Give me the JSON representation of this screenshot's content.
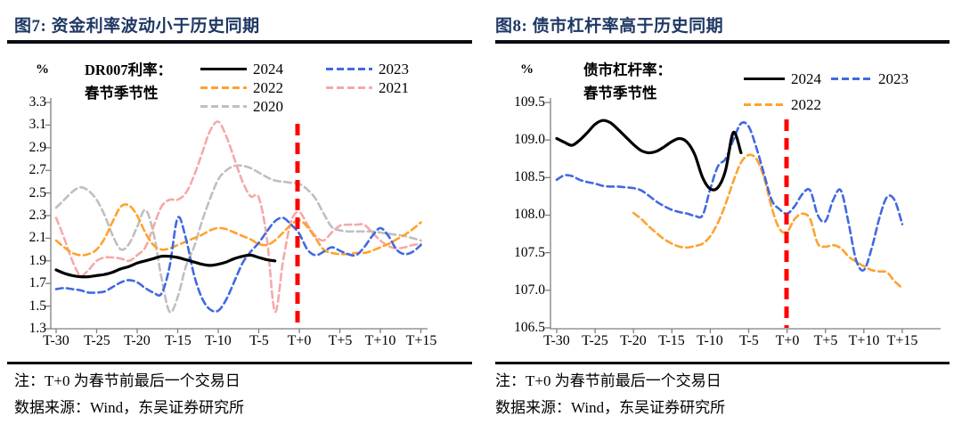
{
  "left_panel": {
    "title": "图7:  资金利率波动小于历史同期",
    "unit_label": "%",
    "label_line1": "DR007利率：",
    "label_line2": "春节季节性",
    "note_line1": "注：T+0 为春节前最后一个交易日",
    "note_line2": "数据来源：Wind，东吴证券研究所"
  },
  "right_panel": {
    "title": "图8:  债市杠杆率高于历史同期",
    "unit_label": "%",
    "label_line1": "债市杠杆率：",
    "label_line2": "春节季节性",
    "note_line1": "注：T+0 为春节前最后一个交易日",
    "note_line2": "数据来源：Wind，东吴证券研究所"
  },
  "colors": {
    "title_navy": "#1f3864",
    "black_2024": "#000000",
    "blue_2023": "#4169e1",
    "orange_2022": "#ffa22e",
    "pink_2021": "#f5a9a9",
    "gray_2020": "#bfbfbf",
    "red_marker": "#ff0000",
    "axis_gray": "#7f7f7f"
  },
  "chart_data": [
    {
      "type": "line",
      "title": "DR007利率: 春节季节性",
      "ylabel": "%",
      "y_tick_labels": [
        "3.3",
        "3.1",
        "2.9",
        "2.7",
        "2.5",
        "2.3",
        "2.1",
        "1.9",
        "1.7",
        "1.5",
        "1.3"
      ],
      "ylim": [
        1.3,
        3.3
      ],
      "x_tick_labels": [
        "T-30",
        "T-25",
        "T-20",
        "T-15",
        "T-10",
        "T-5",
        "T+0",
        "T+5",
        "T+10",
        "T+15"
      ],
      "x_tick_days": [
        -30,
        -25,
        -20,
        -15,
        -10,
        -5,
        0,
        5,
        10,
        15
      ],
      "xlim": [
        -30,
        15
      ],
      "red_dashed_line_at": "T+0",
      "legend_position": "top",
      "grid": false,
      "series": [
        {
          "name": "2024",
          "color": "#000000",
          "dashed": false,
          "width": 3.2,
          "start_day": -30,
          "values": [
            1.82,
            1.79,
            1.77,
            1.76,
            1.76,
            1.77,
            1.78,
            1.8,
            1.83,
            1.85,
            1.88,
            1.9,
            1.92,
            1.94,
            1.94,
            1.93,
            1.91,
            1.89,
            1.87,
            1.86,
            1.87,
            1.89,
            1.92,
            1.94,
            1.95,
            1.93,
            1.91,
            1.9
          ]
        },
        {
          "name": "2023",
          "color": "#4169e1",
          "dashed": true,
          "width": 2.6,
          "start_day": -30,
          "values": [
            1.65,
            1.66,
            1.65,
            1.64,
            1.62,
            1.62,
            1.63,
            1.67,
            1.71,
            1.73,
            1.71,
            1.66,
            1.62,
            1.61,
            1.85,
            2.28,
            2.1,
            1.78,
            1.57,
            1.47,
            1.46,
            1.56,
            1.72,
            1.88,
            1.98,
            2.06,
            2.16,
            2.25,
            2.28,
            2.22,
            2.14,
            2.0,
            1.95,
            1.98,
            2.02,
            1.99,
            1.96,
            1.95,
            2.02,
            2.12,
            2.19,
            2.12,
            2.0,
            1.96,
            1.98,
            2.04
          ]
        },
        {
          "name": "2022",
          "color": "#ffa22e",
          "dashed": true,
          "width": 2.6,
          "start_day": -30,
          "values": [
            2.08,
            2.02,
            1.97,
            1.95,
            1.96,
            2.0,
            2.1,
            2.25,
            2.38,
            2.39,
            2.3,
            2.15,
            2.04,
            2.0,
            2.01,
            2.04,
            2.07,
            2.1,
            2.13,
            2.17,
            2.19,
            2.18,
            2.15,
            2.12,
            2.09,
            2.05,
            2.04,
            2.08,
            2.15,
            2.22,
            2.26,
            2.2,
            2.1,
            2.0,
            1.97,
            1.96,
            1.96,
            1.97,
            1.97,
            1.99,
            2.02,
            2.05,
            2.09,
            2.13,
            2.18,
            2.24
          ]
        },
        {
          "name": "2021",
          "color": "#f5a9a9",
          "dashed": true,
          "width": 2.6,
          "start_day": -30,
          "values": [
            2.28,
            2.1,
            1.9,
            1.77,
            1.82,
            1.9,
            1.93,
            1.93,
            1.92,
            1.9,
            1.95,
            2.02,
            2.2,
            2.38,
            2.44,
            2.44,
            2.5,
            2.65,
            2.85,
            3.05,
            3.13,
            3.0,
            2.8,
            2.6,
            2.47,
            2.46,
            2.1,
            1.45,
            1.9,
            2.25,
            2.33,
            2.22,
            2.12,
            2.08,
            2.15,
            2.21,
            2.22,
            2.22,
            2.22,
            2.15,
            2.08,
            2.03,
            2.01,
            2.02,
            2.04,
            2.05
          ]
        },
        {
          "name": "2020",
          "color": "#bfbfbf",
          "dashed": true,
          "width": 2.6,
          "start_day": -30,
          "values": [
            2.37,
            2.44,
            2.51,
            2.55,
            2.52,
            2.44,
            2.3,
            2.12,
            2.0,
            2.05,
            2.2,
            2.35,
            2.15,
            1.75,
            1.45,
            1.58,
            1.85,
            2.02,
            2.25,
            2.45,
            2.62,
            2.7,
            2.74,
            2.74,
            2.72,
            2.68,
            2.64,
            2.61,
            2.6,
            2.59,
            2.58,
            2.53,
            2.45,
            2.32,
            2.2,
            2.17,
            2.16,
            2.16,
            2.16,
            2.16,
            2.15,
            2.14,
            2.13,
            2.12,
            2.1,
            2.08
          ]
        }
      ]
    },
    {
      "type": "line",
      "title": "债市杠杆率: 春节季节性",
      "ylabel": "%",
      "y_tick_labels": [
        "109.5",
        "109.0",
        "108.5",
        "108.0",
        "107.5",
        "107.0",
        "106.5"
      ],
      "ylim": [
        106.5,
        109.5
      ],
      "x_tick_labels": [
        "T-30",
        "T-25",
        "T-20",
        "T-15",
        "T-10",
        "T-5",
        "T+0",
        "T+5",
        "T+10",
        "T+15"
      ],
      "x_tick_days": [
        -30,
        -25,
        -20,
        -15,
        -10,
        -5,
        0,
        5,
        10,
        15
      ],
      "xlim": [
        -30,
        15
      ],
      "red_dashed_line_at": "T+0",
      "legend_position": "top",
      "grid": false,
      "series": [
        {
          "name": "2024",
          "color": "#000000",
          "dashed": false,
          "width": 3.2,
          "start_day": -30,
          "values": [
            109.02,
            108.97,
            108.93,
            109.0,
            109.1,
            109.21,
            109.26,
            109.23,
            109.14,
            109.04,
            108.94,
            108.86,
            108.83,
            108.85,
            108.91,
            108.98,
            109.02,
            108.97,
            108.8,
            108.5,
            108.35,
            108.37,
            108.6,
            109.1,
            108.83
          ]
        },
        {
          "name": "2023",
          "color": "#4169e1",
          "dashed": true,
          "width": 2.6,
          "start_day": -30,
          "values": [
            108.47,
            108.53,
            108.52,
            108.47,
            108.44,
            108.42,
            108.39,
            108.38,
            108.38,
            108.37,
            108.36,
            108.33,
            108.26,
            108.18,
            108.12,
            108.07,
            108.04,
            108.02,
            107.99,
            108.0,
            108.35,
            108.65,
            108.75,
            109.0,
            109.22,
            109.18,
            108.9,
            108.55,
            108.2,
            108.08,
            108.02,
            108.12,
            108.28,
            108.33,
            108.0,
            107.92,
            108.2,
            108.33,
            107.9,
            107.4,
            107.27,
            107.55,
            107.95,
            108.24,
            108.2,
            107.88
          ]
        },
        {
          "name": "2022",
          "color": "#ffa22e",
          "dashed": true,
          "width": 2.6,
          "start_day": -20,
          "values": [
            108.03,
            107.95,
            107.85,
            107.76,
            107.68,
            107.62,
            107.58,
            107.57,
            107.59,
            107.62,
            107.72,
            107.9,
            108.15,
            108.45,
            108.7,
            108.8,
            108.75,
            108.5,
            108.1,
            107.82,
            107.78,
            107.95,
            108.02,
            107.95,
            107.62,
            107.58,
            107.6,
            107.56,
            107.45,
            107.38,
            107.32,
            107.27,
            107.25,
            107.24,
            107.12,
            107.03
          ]
        }
      ]
    }
  ]
}
